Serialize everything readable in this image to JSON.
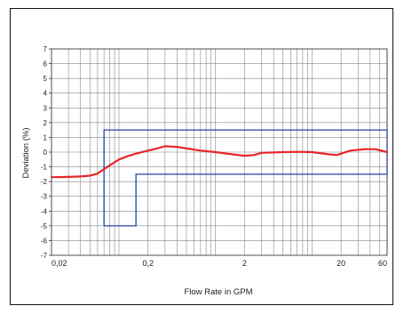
{
  "chart_data": {
    "type": "line",
    "title": "",
    "xlabel": "Flow Rate in GPM",
    "ylabel": "Deviation (%)",
    "x_scale": "log",
    "xlim": [
      0.02,
      60
    ],
    "ylim": [
      -7,
      7
    ],
    "y_ticks": [
      "7",
      "6",
      "5",
      "4",
      "3",
      "2",
      "1",
      "0",
      "-1",
      "-2",
      "-3",
      "-4",
      "-5",
      "-6",
      "-7"
    ],
    "x_tick_labels": [
      {
        "value": 0.02,
        "label": "0,02"
      },
      {
        "value": 0.2,
        "label": "0,2"
      },
      {
        "value": 2,
        "label": "2"
      },
      {
        "value": 20,
        "label": "20"
      },
      {
        "value": 60,
        "label": "60"
      }
    ],
    "grid": true,
    "legend": "none",
    "colors": {
      "curve": "#e8262a",
      "tolerance": "#2b3fa0",
      "grid": "#888888"
    },
    "series": [
      {
        "name": "",
        "x": [
          0.02,
          0.03,
          0.04,
          0.05,
          0.06,
          0.07,
          0.08,
          0.1,
          0.12,
          0.15,
          0.2,
          0.25,
          0.3,
          0.4,
          0.5,
          0.7,
          1.0,
          1.5,
          2.0,
          2.5,
          3,
          5,
          7,
          10,
          15,
          18,
          20,
          25,
          35,
          45,
          60
        ],
        "y": [
          -1.7,
          -1.68,
          -1.65,
          -1.6,
          -1.45,
          -1.15,
          -0.9,
          -0.5,
          -0.3,
          -0.1,
          0.1,
          0.25,
          0.4,
          0.35,
          0.25,
          0.1,
          0.0,
          -0.15,
          -0.25,
          -0.2,
          -0.05,
          0.0,
          0.02,
          0.0,
          -0.15,
          -0.2,
          -0.1,
          0.1,
          0.2,
          0.2,
          0.0
        ]
      }
    ],
    "tolerance_envelope": {
      "x": [
        0.07,
        0.07,
        60,
        60,
        0.15,
        0.15,
        0.07
      ],
      "y": [
        -5,
        1.5,
        1.5,
        -1.5,
        -1.5,
        -5,
        -5
      ]
    }
  }
}
